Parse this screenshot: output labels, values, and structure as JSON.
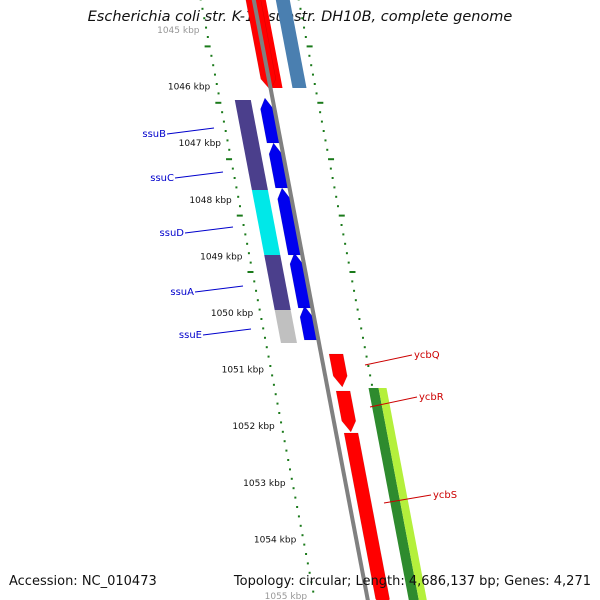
{
  "title": "Escherichia coli str. K-12 substr. DH10B, complete genome",
  "footer": {
    "accession": "Accession: NC_010473",
    "topology": "Topology: circular; Length: 4,686,137 bp; Genes: 4,271"
  },
  "ticks": [
    {
      "label": "1045 kbp",
      "faded": true
    },
    {
      "label": "1046 kbp"
    },
    {
      "label": "1047 kbp"
    },
    {
      "label": "1048 kbp"
    },
    {
      "label": "1049 kbp"
    },
    {
      "label": "1050 kbp"
    },
    {
      "label": "1051 kbp"
    },
    {
      "label": "1052 kbp"
    },
    {
      "label": "1053 kbp"
    },
    {
      "label": "1054 kbp"
    },
    {
      "label": "1055 kbp",
      "faded": true
    }
  ],
  "genes": [
    {
      "name": "ssuB",
      "strand": "forward",
      "label_color": "#0000cc"
    },
    {
      "name": "ssuC",
      "strand": "forward",
      "label_color": "#0000cc"
    },
    {
      "name": "ssuD",
      "strand": "forward",
      "label_color": "#0000cc"
    },
    {
      "name": "ssuA",
      "strand": "forward",
      "label_color": "#0000cc"
    },
    {
      "name": "ssuE",
      "strand": "forward",
      "label_color": "#0000cc"
    },
    {
      "name": "ycbQ",
      "strand": "reverse",
      "label_color": "#cc0000"
    },
    {
      "name": "ycbR",
      "strand": "reverse",
      "label_color": "#cc0000"
    },
    {
      "name": "ycbS",
      "strand": "reverse",
      "label_color": "#cc0000"
    }
  ],
  "colors": {
    "forward_cds": "#0000ee",
    "reverse_cds": "#ff0000",
    "backbone": "#808080",
    "tick": "#1a7a1a",
    "cog_slate": "#4b3f8c",
    "cog_cyan": "#00e8e8",
    "cog_grey": "#c0c0c0",
    "cog_green_dark": "#2e8b2e",
    "cog_green_light": "#b4f03c",
    "cog_steelblue": "#4a7fb0"
  }
}
